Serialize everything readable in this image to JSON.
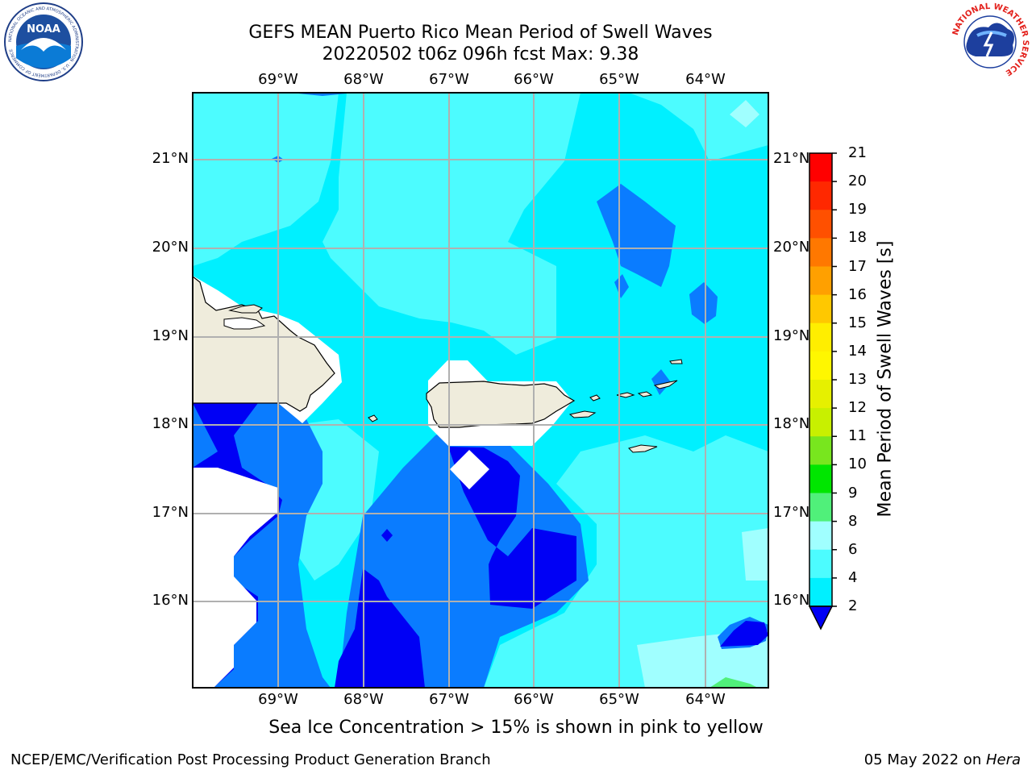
{
  "header": {
    "title_line1": "GEFS MEAN Puerto Rico Mean Period of Swell Waves",
    "title_line2": "20220502 t06z 096h fcst   Max: 9.38"
  },
  "map": {
    "lon_labels": [
      "69°W",
      "68°W",
      "67°W",
      "66°W",
      "65°W",
      "64°W"
    ],
    "lat_labels": [
      "21°N",
      "20°N",
      "19°N",
      "18°N",
      "17°N",
      "16°N"
    ],
    "land_color": "#efecdc",
    "field_colors": {
      "band_2_4": "#0000f5",
      "band_4_6": "#0a7cff",
      "band_6_8": "#00f0ff",
      "band_8_9": "#4cfcff",
      "band_9_10": "#a0ffff",
      "band_10_11": "#50f07a"
    }
  },
  "colorbar": {
    "title": "Mean Period of Swell Waves [s]",
    "labels": [
      "21",
      "20",
      "19",
      "18",
      "17",
      "16",
      "15",
      "14",
      "13",
      "12",
      "11",
      "10",
      "9",
      "8",
      "6",
      "4",
      "2"
    ],
    "colors": [
      "#ff0000",
      "#ff2800",
      "#ff5000",
      "#ff7800",
      "#ffa000",
      "#ffc800",
      "#ffee00",
      "#fff700",
      "#e6f000",
      "#c8f000",
      "#78e61e",
      "#00e600",
      "#50f07a",
      "#a0ffff",
      "#4cfcff",
      "#00f0ff",
      "#0a7cff",
      "#0000f5"
    ]
  },
  "subtitle": "Sea Ice Concentration > 15% is shown in pink to yellow",
  "footer": {
    "left": "NCEP/EMC/Verification Post Processing Product Generation Branch",
    "right_date": "05 May 2022 on ",
    "right_host": "Hera"
  },
  "logos": {
    "left_text": "NOAA",
    "left_ring_text": "NATIONAL OCEANIC AND ATMOSPHERIC ADMINISTRATION · U.S. DEPARTMENT OF COMMERCE",
    "right_ring_text": "NATIONAL WEATHER SERVICE"
  }
}
